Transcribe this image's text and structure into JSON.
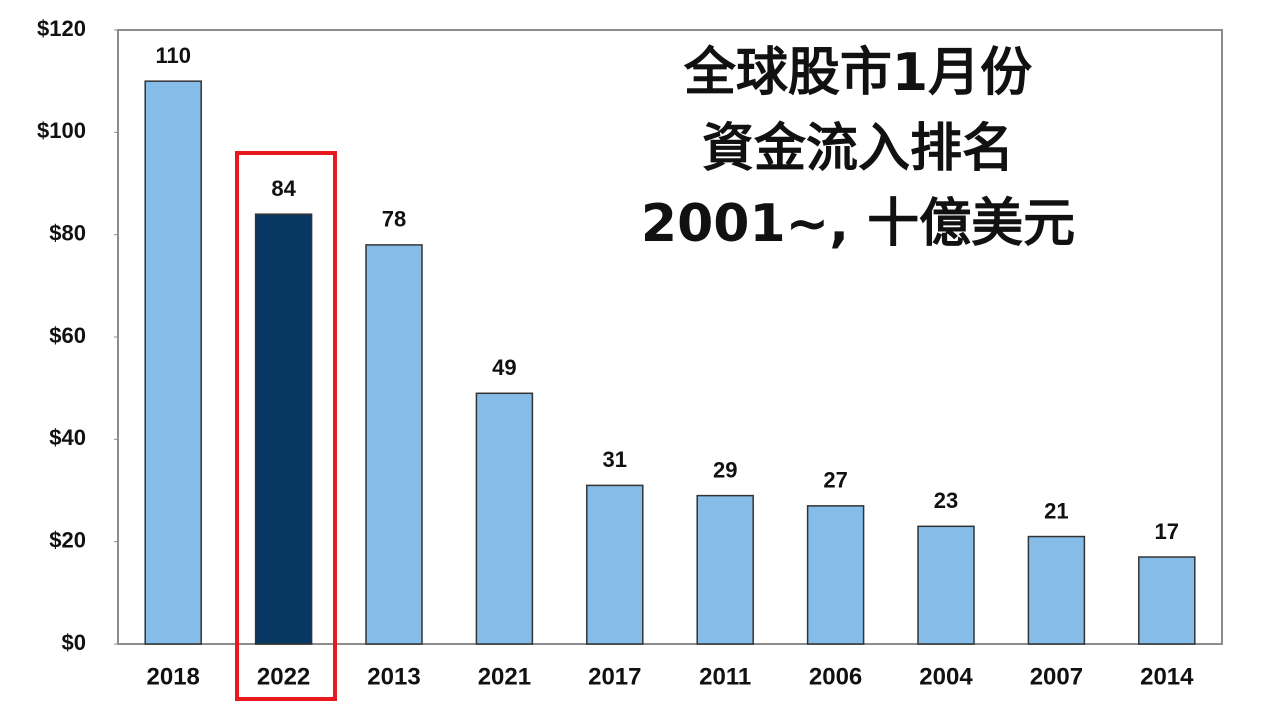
{
  "chart_data": {
    "type": "bar",
    "title": [
      "全球股市1月份",
      "資金流入排名",
      "2001~, 十億美元"
    ],
    "categories": [
      "2018",
      "2022",
      "2013",
      "2021",
      "2017",
      "2011",
      "2006",
      "2004",
      "2007",
      "2014"
    ],
    "values": [
      110,
      84,
      78,
      49,
      31,
      29,
      27,
      23,
      21,
      17
    ],
    "colors": [
      "#85bde8",
      "#073763",
      "#85bde8",
      "#85bde8",
      "#85bde8",
      "#85bde8",
      "#85bde8",
      "#85bde8",
      "#85bde8",
      "#85bde8"
    ],
    "ylim": [
      0,
      120
    ],
    "yticks": [
      {
        "value": 0,
        "label": "$0"
      },
      {
        "value": 20,
        "label": "$20"
      },
      {
        "value": 40,
        "label": "$40"
      },
      {
        "value": 60,
        "label": "$60"
      },
      {
        "value": 80,
        "label": "$80"
      },
      {
        "value": 100,
        "label": "$100"
      },
      {
        "value": 120,
        "label": "$120"
      }
    ],
    "grid": false
  }
}
